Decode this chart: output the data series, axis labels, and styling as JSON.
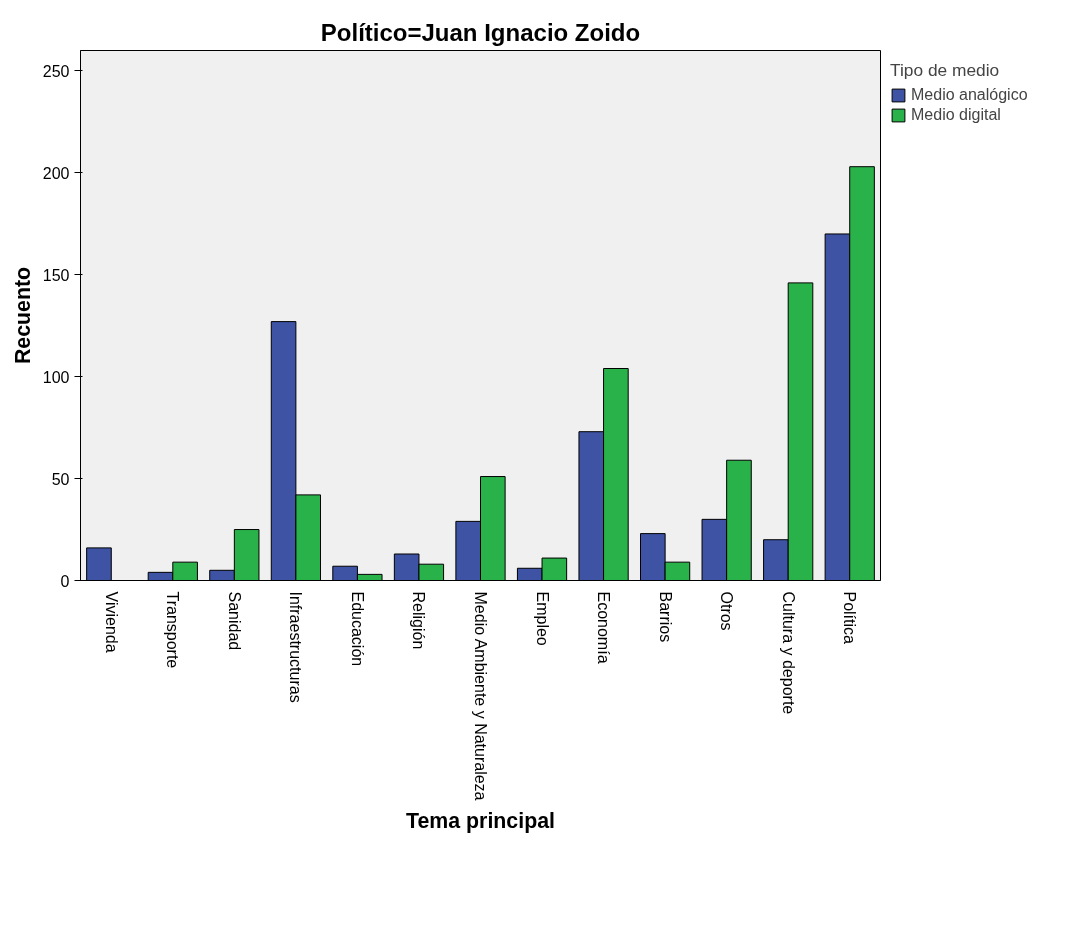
{
  "chart_data": {
    "type": "bar",
    "title": "Político=Juan Ignacio Zoido",
    "xlabel": "Tema principal",
    "ylabel": "Recuento",
    "legend_title": "Tipo de medio",
    "categories": [
      "Vivienda",
      "Transporte",
      "Sanidad",
      "Infraestructuras",
      "Educación",
      "Religión",
      "Medio Ambiente y Naturaleza",
      "Empleo",
      "Economía",
      "Barrios",
      "Otros",
      "Cultura y deporte",
      "Política"
    ],
    "series": [
      {
        "name": "Medio analógico",
        "color": "#3e53a4",
        "values": [
          16,
          4,
          5,
          127,
          7,
          13,
          29,
          6,
          73,
          23,
          30,
          20,
          170
        ]
      },
      {
        "name": "Medio digital",
        "color": "#2ab24a",
        "values": [
          null,
          9,
          25,
          42,
          3,
          8,
          51,
          11,
          104,
          9,
          59,
          146,
          203
        ]
      }
    ],
    "ylim": [
      0,
      260
    ],
    "yticks": [
      0,
      50,
      100,
      150,
      200,
      250
    ],
    "grid": false,
    "legend": "top right"
  }
}
